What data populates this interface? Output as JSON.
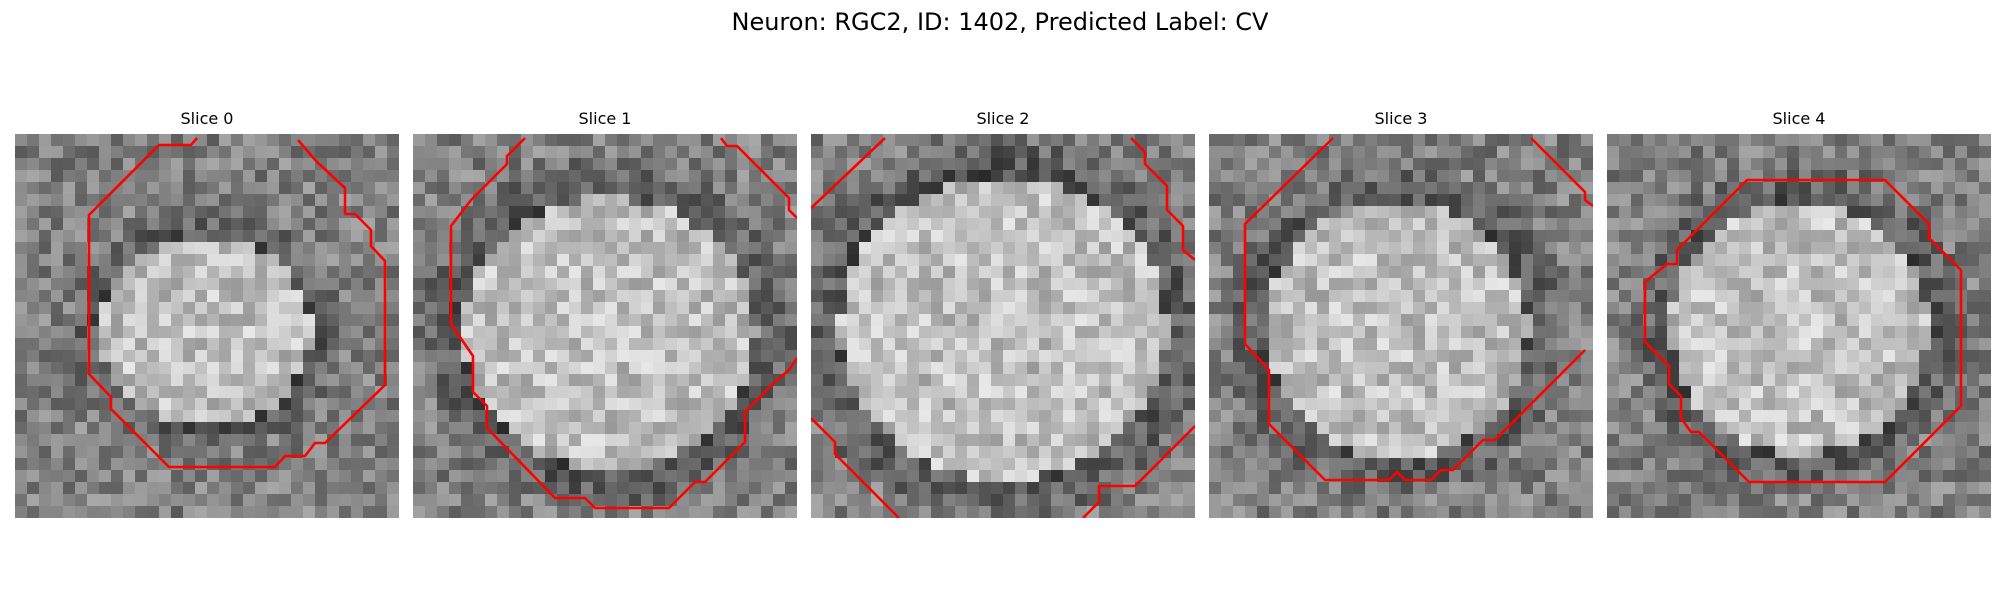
{
  "figure": {
    "title": "Neuron: RGC2, ID: 1402, Predicted Label: CV"
  },
  "colors": {
    "contour": "#ff0000",
    "background": "#ffffff"
  },
  "slices": [
    {
      "title": "Slice 0"
    },
    {
      "title": "Slice 1"
    },
    {
      "title": "Slice 2"
    },
    {
      "title": "Slice 3"
    },
    {
      "title": "Slice 4"
    }
  ]
}
